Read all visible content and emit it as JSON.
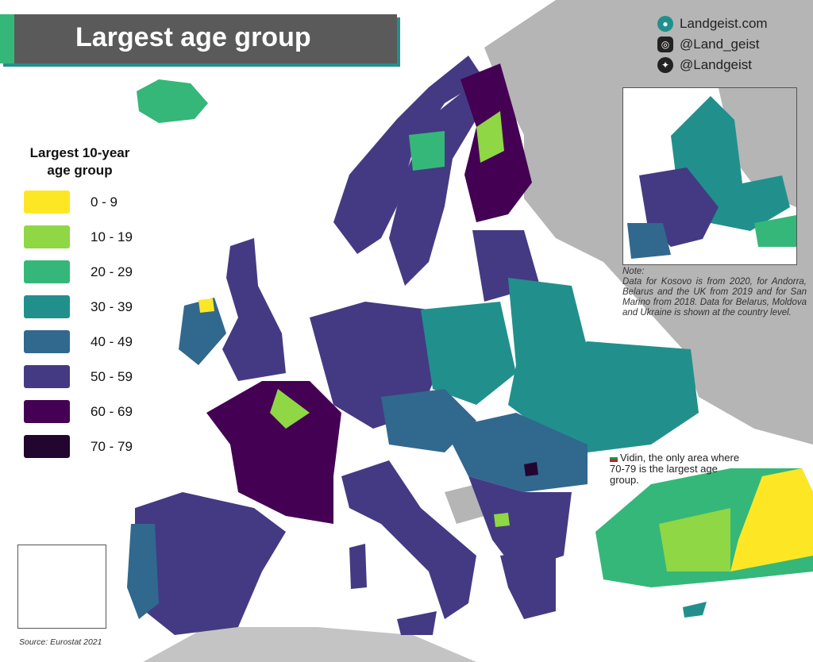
{
  "header": {
    "title": "Largest age group"
  },
  "social": [
    {
      "icon": "globe-icon",
      "text": "Landgeist.com"
    },
    {
      "icon": "instagram-icon",
      "text": "@Land_geist"
    },
    {
      "icon": "twitter-icon",
      "text": "@Landgeist"
    }
  ],
  "legend": {
    "title_line1": "Largest 10-year",
    "title_line2": "age group",
    "items": [
      {
        "label": "0  -  9",
        "color": "#fde725"
      },
      {
        "label": "10 - 19",
        "color": "#8fd744"
      },
      {
        "label": "20 - 29",
        "color": "#35b779"
      },
      {
        "label": "30 - 39",
        "color": "#21908d"
      },
      {
        "label": "40 - 49",
        "color": "#31688e"
      },
      {
        "label": "50 - 59",
        "color": "#443a83"
      },
      {
        "label": "60 - 69",
        "color": "#440154"
      },
      {
        "label": "70 - 79",
        "color": "#22062f"
      }
    ]
  },
  "note": {
    "heading": "Note:",
    "text": "Data for Kosovo is from 2020, for Andorra, Belarus and the UK from 2019 and for San Marino from 2018. Data for Belarus, Moldova and Ukraine is shown at the country level."
  },
  "annotation": {
    "text": "Vidin, the only area where 70-79 is the largest age group."
  },
  "source": "Source: Eurostat 2021"
}
